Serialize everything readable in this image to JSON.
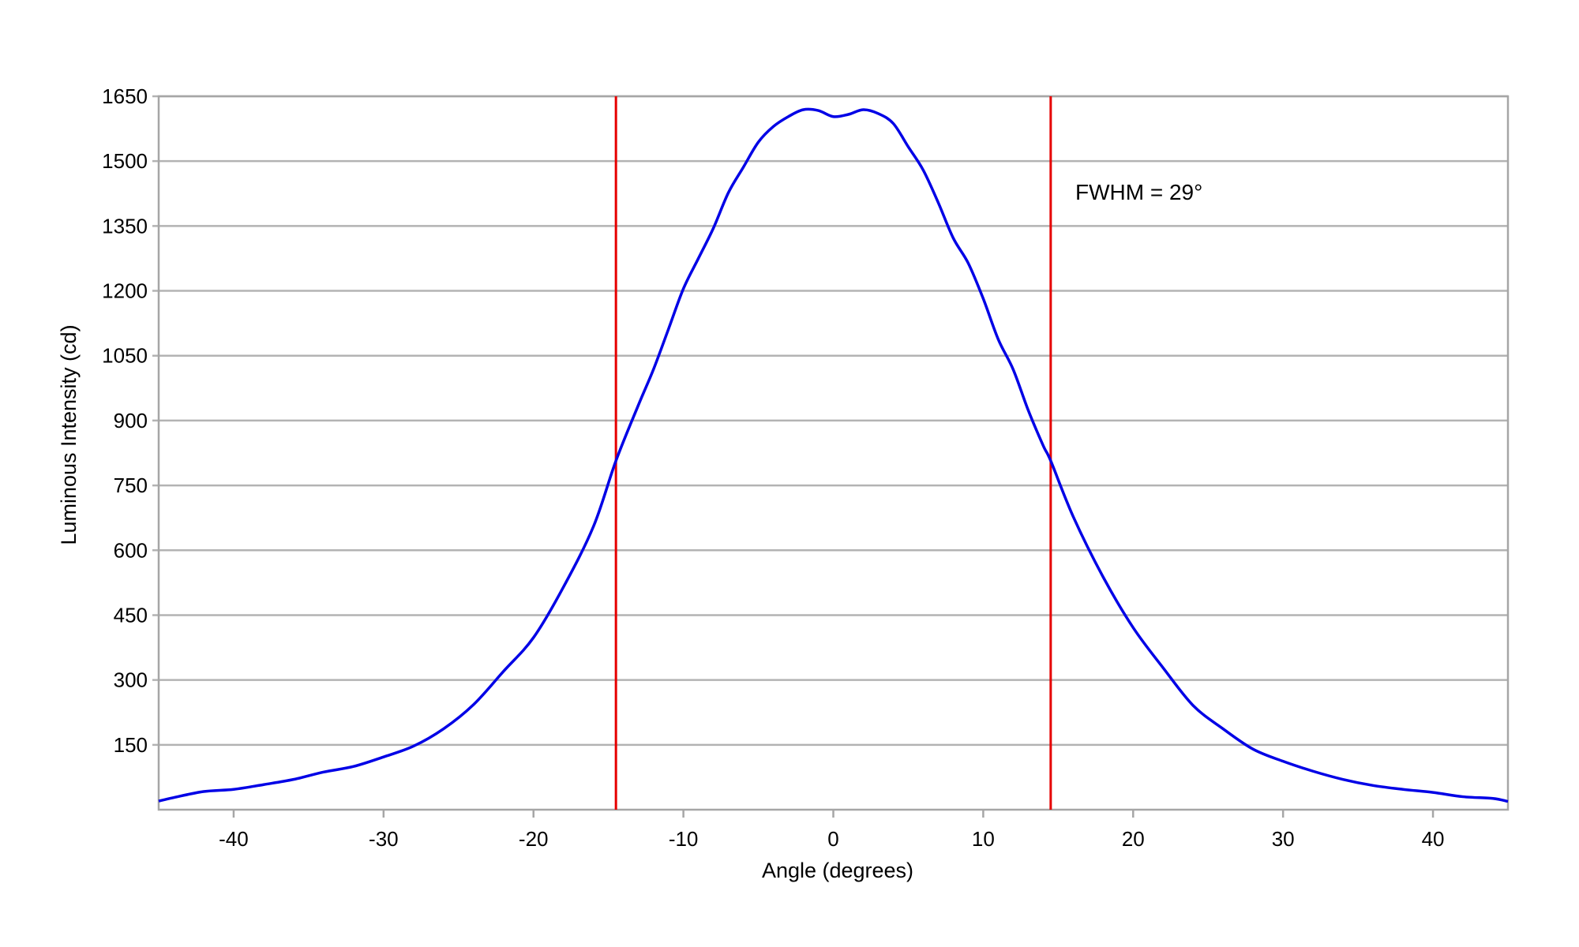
{
  "chart_data": {
    "type": "line",
    "title": "",
    "xlabel": "Angle (degrees)",
    "ylabel": "Luminous Intensity (cd)",
    "xlim": [
      -45,
      45
    ],
    "ylim": [
      0,
      1650
    ],
    "grid": "horizontal",
    "x_ticks": [
      "-40",
      "-30",
      "-20",
      "-10",
      "0",
      "10",
      "20",
      "30",
      "40"
    ],
    "x_tick_values": [
      -40,
      -30,
      -20,
      -10,
      0,
      10,
      20,
      30,
      40
    ],
    "y_ticks": [
      "150",
      "300",
      "450",
      "600",
      "750",
      "900",
      "1050",
      "1200",
      "1350",
      "1500",
      "1650"
    ],
    "y_tick_values": [
      150,
      300,
      450,
      600,
      750,
      900,
      1050,
      1200,
      1350,
      1500,
      1650
    ],
    "series": [
      {
        "name": "Luminous Intensity",
        "color": "#0000e6",
        "x": [
          -45,
          -44,
          -42,
          -40,
          -38,
          -36,
          -34,
          -32,
          -30,
          -28,
          -26,
          -24,
          -22,
          -20,
          -18,
          -16,
          -14.5,
          -13,
          -12,
          -11,
          -10,
          -9,
          -8,
          -7,
          -6,
          -5,
          -4,
          -3,
          -2,
          -1,
          0,
          1,
          2,
          3,
          4,
          5,
          6,
          7,
          8,
          9,
          10,
          11,
          12,
          13,
          14,
          14.5,
          16,
          18,
          20,
          22,
          24,
          26,
          28,
          30,
          32,
          34,
          36,
          38,
          40,
          42,
          44,
          45
        ],
        "y": [
          20,
          28,
          42,
          47,
          58,
          70,
          87,
          100,
          122,
          147,
          187,
          243,
          320,
          398,
          515,
          655,
          807,
          936,
          1018,
          1111,
          1205,
          1275,
          1345,
          1427,
          1486,
          1544,
          1580,
          1603,
          1619,
          1617,
          1603,
          1608,
          1619,
          1610,
          1587,
          1533,
          1479,
          1404,
          1322,
          1264,
          1182,
          1088,
          1018,
          924,
          842,
          807,
          678,
          538,
          421,
          328,
          241,
          187,
          140,
          112,
          89,
          70,
          56,
          47,
          40,
          30,
          26,
          19
        ]
      }
    ],
    "markers": [
      {
        "name": "left-half-max",
        "x": -14.5,
        "color": "#e60000"
      },
      {
        "name": "right-half-max",
        "x": 14.5,
        "color": "#e60000"
      }
    ],
    "annotations": [
      {
        "text": "FWHM = 29°"
      }
    ]
  }
}
